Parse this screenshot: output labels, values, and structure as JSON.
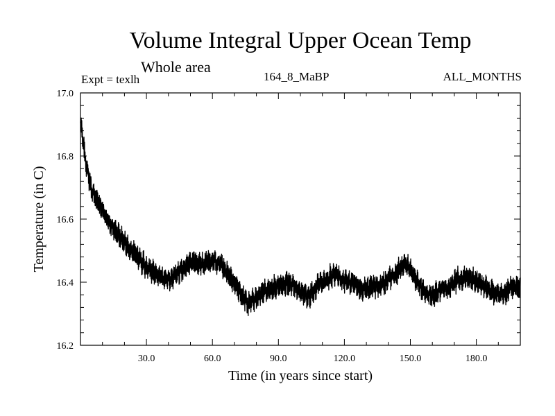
{
  "chart_data": {
    "type": "line",
    "title": "Volume Integral Upper Ocean Temp",
    "subtitle": "Whole area",
    "annotations": {
      "experiment": "Expt = texlh",
      "run": "164_8_MaBP",
      "months": "ALL_MONTHS"
    },
    "xlabel": "Time (in years since start)",
    "ylabel": "Temperature (in C)",
    "xlim": [
      0,
      200
    ],
    "ylim": [
      16.2,
      17.0
    ],
    "x_ticks": [
      30,
      60,
      90,
      120,
      150,
      180
    ],
    "x_tick_labels": [
      "30.0",
      "60.0",
      "90.0",
      "120.0",
      "150.0",
      "180.0"
    ],
    "y_ticks": [
      16.2,
      16.4,
      16.6,
      16.8,
      17.0
    ],
    "y_tick_labels": [
      "16.2",
      "16.4",
      "16.6",
      "16.8",
      "17.0"
    ],
    "grid": false,
    "series": [
      {
        "name": "Temperature",
        "color": "#000000",
        "x": [
          0,
          1,
          2,
          3,
          5,
          7,
          10,
          13,
          16,
          20,
          24,
          28,
          32,
          36,
          40,
          44,
          48,
          52,
          56,
          60,
          64,
          68,
          72,
          76,
          80,
          84,
          88,
          92,
          96,
          100,
          104,
          108,
          112,
          116,
          120,
          124,
          128,
          132,
          136,
          140,
          144,
          148,
          152,
          156,
          160,
          164,
          168,
          172,
          176,
          180,
          184,
          188,
          192,
          196,
          200
        ],
        "y": [
          16.9,
          16.86,
          16.8,
          16.76,
          16.7,
          16.67,
          16.63,
          16.59,
          16.56,
          16.52,
          16.49,
          16.46,
          16.44,
          16.42,
          16.41,
          16.43,
          16.45,
          16.46,
          16.45,
          16.47,
          16.46,
          16.42,
          16.38,
          16.33,
          16.35,
          16.37,
          16.38,
          16.39,
          16.4,
          16.37,
          16.36,
          16.39,
          16.41,
          16.42,
          16.4,
          16.4,
          16.38,
          16.39,
          16.39,
          16.41,
          16.43,
          16.46,
          16.41,
          16.37,
          16.36,
          16.38,
          16.39,
          16.41,
          16.41,
          16.4,
          16.38,
          16.37,
          16.36,
          16.39,
          16.38
        ],
        "amplitude": 0.032
      }
    ]
  }
}
